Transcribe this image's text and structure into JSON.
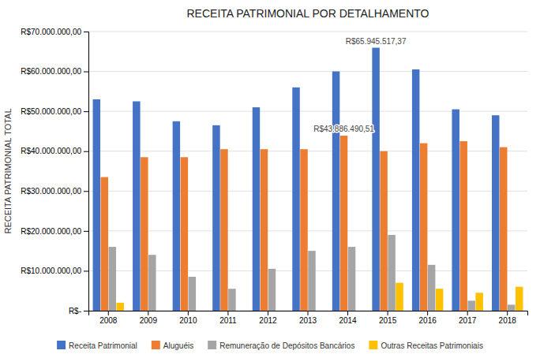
{
  "chart_data": {
    "type": "bar",
    "title": "RECEITA PATRIMONIAL POR DETALHAMENTO",
    "ylabel": "RECEITA PATRIMONIAL TOTAL",
    "categories": [
      "2008",
      "2009",
      "2010",
      "2011",
      "2012",
      "2013",
      "2014",
      "2015",
      "2016",
      "2017",
      "2018"
    ],
    "series": [
      {
        "name": "Receita Patrimonial",
        "color": "#4472c4",
        "values": [
          53000000,
          52500000,
          47500000,
          46500000,
          51000000,
          56000000,
          60000000,
          65945517.37,
          60500000,
          50500000,
          49000000
        ]
      },
      {
        "name": "Aluguéis",
        "color": "#ed7d31",
        "values": [
          33500000,
          38500000,
          38500000,
          40500000,
          40500000,
          40500000,
          43886490.51,
          40000000,
          42000000,
          42500000,
          41000000
        ]
      },
      {
        "name": "Remuneração de Depósitos Bancários",
        "color": "#a5a5a5",
        "values": [
          16000000,
          14000000,
          8500000,
          5500000,
          10500000,
          15000000,
          16000000,
          19000000,
          11500000,
          2500000,
          1500000
        ]
      },
      {
        "name": "Outras Receitas Patrimoniais",
        "color": "#ffc000",
        "values": [
          2000000,
          0,
          0,
          0,
          0,
          0,
          0,
          7000000,
          5500000,
          4500000,
          6000000
        ]
      }
    ],
    "ylim": [
      0,
      70000000
    ],
    "yticks": [
      {
        "value": 0,
        "label": "R$-"
      },
      {
        "value": 10000000,
        "label": "R$10.000.000,00"
      },
      {
        "value": 20000000,
        "label": "R$20.000.000,00"
      },
      {
        "value": 30000000,
        "label": "R$30.000.000,00"
      },
      {
        "value": 40000000,
        "label": "R$40.000.000,00"
      },
      {
        "value": 50000000,
        "label": "R$50.000.000,00"
      },
      {
        "value": 60000000,
        "label": "R$60.000.000,00"
      },
      {
        "value": 70000000,
        "label": "R$70.000.000,00"
      }
    ],
    "grid": true,
    "legend": "bottom",
    "annotations": [
      {
        "text": "R$65.945.517,37",
        "x": "2015",
        "y": 65945517.37
      },
      {
        "text": "R$43.886.490,51",
        "x": "2014",
        "y": 43886490.51
      }
    ]
  }
}
